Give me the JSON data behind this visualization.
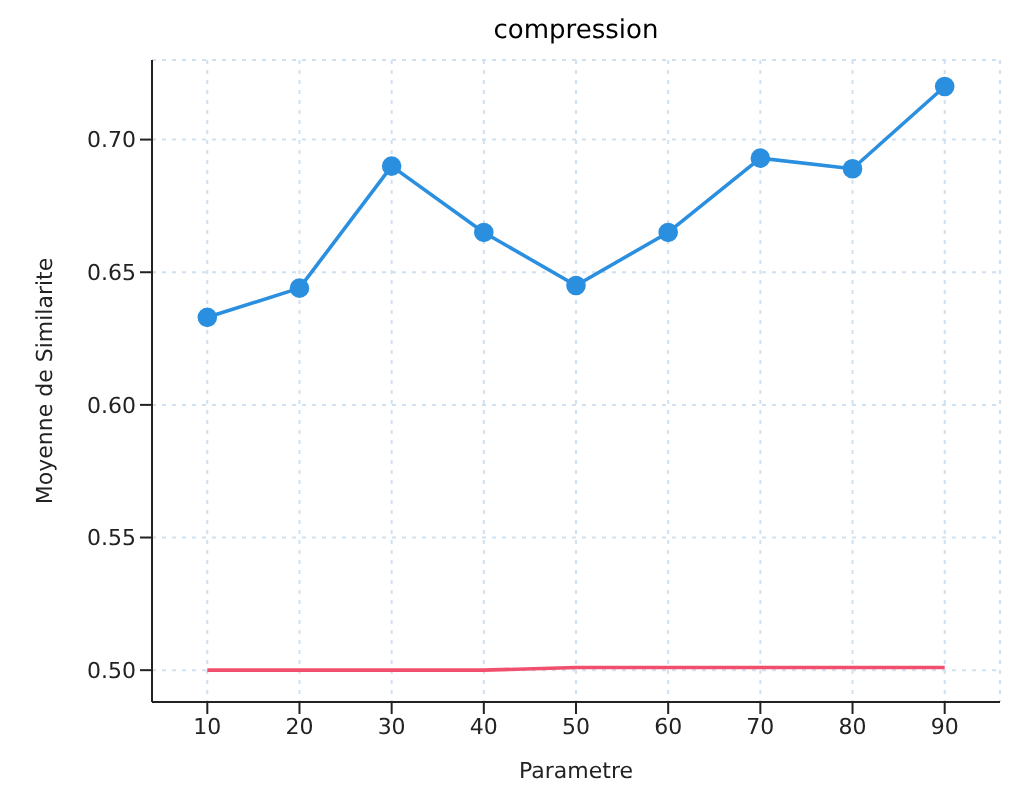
{
  "chart_data": {
    "type": "line",
    "title": "compression",
    "xlabel": "Parametre",
    "ylabel": "Moyenne de Similarite",
    "x": [
      10,
      20,
      30,
      40,
      50,
      60,
      70,
      80,
      90
    ],
    "series": [
      {
        "color": "#2b8fe0",
        "marker": "circle",
        "values": [
          0.633,
          0.644,
          0.69,
          0.665,
          0.645,
          0.665,
          0.693,
          0.689,
          0.72
        ]
      },
      {
        "color": "#f0506e",
        "marker": "none",
        "values": [
          0.5,
          0.5,
          0.5,
          0.5,
          0.501,
          0.501,
          0.501,
          0.501,
          0.501
        ]
      }
    ],
    "xlim": [
      4,
      96
    ],
    "xticks": [
      10,
      20,
      30,
      40,
      50,
      60,
      70,
      80,
      90
    ],
    "ylim": [
      0.488,
      0.73
    ],
    "yticks": [
      {
        "value": 0.5,
        "label": "0.50"
      },
      0.55,
      {
        "value": 0.6,
        "label": "0.60"
      },
      0.65,
      {
        "value": 0.7,
        "label": "0.70"
      }
    ],
    "grid": true,
    "legend": false
  }
}
